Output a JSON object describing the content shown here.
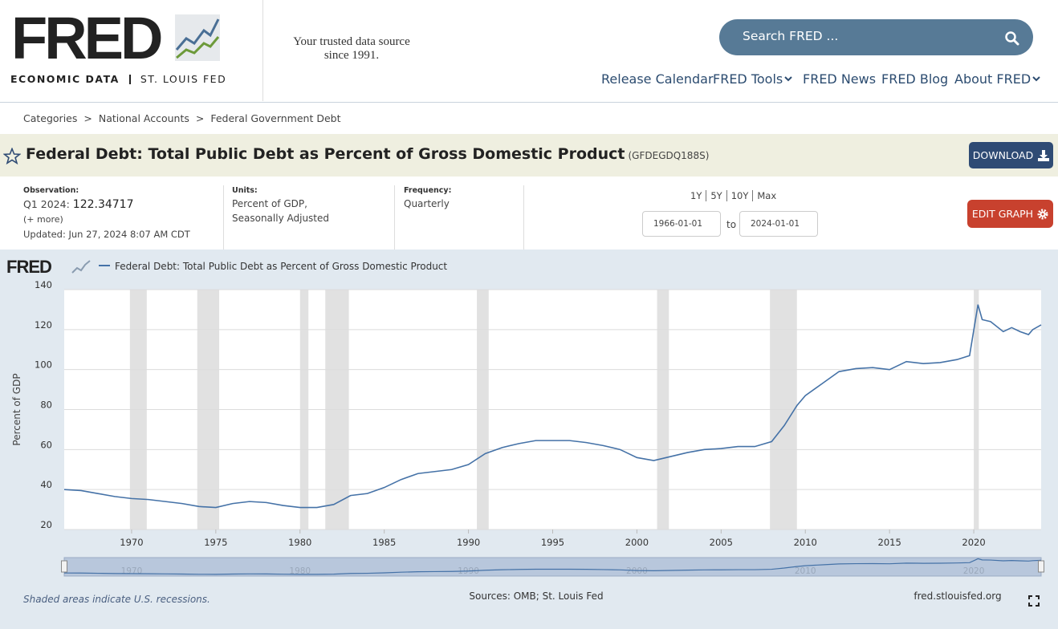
{
  "header": {
    "logo": "FRED",
    "logo_sub_left": "ECONOMIC DATA",
    "logo_sub_right": "ST. LOUIS FED",
    "tagline": "Your trusted data source since 1991.",
    "search_placeholder": "Search FRED ...",
    "nav": [
      "Release Calendar",
      "FRED Tools",
      "FRED News",
      "FRED Blog",
      "About FRED"
    ]
  },
  "breadcrumb": {
    "items": [
      "Categories",
      "National Accounts",
      "Federal Government Debt"
    ],
    "separator": ">"
  },
  "series_header": {
    "title": "Federal Debt: Total Public Debt as Percent of Gross Domestic Product",
    "code": "(GFDEGDQ188S)",
    "download": "DOWNLOAD"
  },
  "meta": {
    "observation_label": "Observation:",
    "observation_period": "Q1 2024:",
    "observation_value": "122.34717",
    "more": "(+ more)",
    "updated": "Updated: Jun 27, 2024 8:07 AM CDT",
    "units_label": "Units:",
    "units": [
      "Percent of GDP,",
      "Seasonally Adjusted"
    ],
    "frequency_label": "Frequency:",
    "frequency": "Quarterly",
    "ranges": [
      "1Y",
      "5Y",
      "10Y",
      "Max"
    ],
    "start_date": "1966-01-01",
    "to": "to",
    "end_date": "2024-01-01",
    "edit_graph": "EDIT GRAPH"
  },
  "chart_data": {
    "type": "line",
    "y_label": "Percent of GDP",
    "x": [
      1966,
      1967,
      1968,
      1969,
      1970,
      1971,
      1972,
      1973,
      1974,
      1975,
      1976,
      1977,
      1978,
      1979,
      1980,
      1981,
      1982,
      1983,
      1984,
      1985,
      1986,
      1987,
      1988,
      1989,
      1990,
      1991,
      1992,
      1993,
      1994,
      1995,
      1996,
      1997,
      1998,
      1999,
      2000,
      2001,
      2002,
      2003,
      2004,
      2005,
      2006,
      2007,
      2008,
      2008.75,
      2009.5,
      2010,
      2011,
      2012,
      2013,
      2014,
      2015,
      2016,
      2017,
      2018,
      2019,
      2019.75,
      2020.25,
      2020.5,
      2021,
      2021.75,
      2022.25,
      2022.75,
      2023.25,
      2023.5,
      2024
    ],
    "series": [
      {
        "name": "Federal Debt: Total Public Debt as Percent of Gross Domestic Product",
        "color": "#4572a7",
        "values": [
          40,
          39.5,
          38,
          36.5,
          35.5,
          35,
          34,
          33,
          31.5,
          31,
          33,
          34,
          33.5,
          32,
          31,
          31,
          32.5,
          37,
          38,
          41,
          45,
          48,
          49,
          50,
          52.5,
          58,
          61,
          63,
          64.5,
          64.5,
          64.5,
          63.5,
          62,
          60,
          56,
          54.5,
          56.5,
          58.5,
          60,
          60.5,
          61.5,
          61.5,
          64,
          72,
          82,
          87,
          93,
          99,
          100.5,
          101,
          100,
          104,
          103,
          103.5,
          105,
          107,
          132.5,
          125,
          124,
          119,
          121,
          119,
          117.5,
          120,
          122.34717
        ]
      }
    ],
    "xlim": [
      1966,
      2024
    ],
    "ylim": [
      20,
      140
    ],
    "xticks": [
      1970,
      1975,
      1980,
      1985,
      1990,
      1995,
      2000,
      2005,
      2010,
      2015,
      2020
    ],
    "yticks": [
      20,
      40,
      60,
      80,
      100,
      120,
      140
    ],
    "grid": true,
    "recessions": [
      [
        1969.9,
        1970.9
      ],
      [
        1973.9,
        1975.2
      ],
      [
        1980.0,
        1980.5
      ],
      [
        1981.5,
        1982.9
      ],
      [
        1990.5,
        1991.2
      ],
      [
        2001.2,
        2001.9
      ],
      [
        2007.9,
        2009.5
      ],
      [
        2020.0,
        2020.3
      ]
    ],
    "recession_color": "#e1e1e1",
    "navigator_xticks": [
      1970,
      1980,
      1990,
      2000,
      2010,
      2020
    ],
    "footnote": "Shaded areas indicate U.S. recessions.",
    "sources": "Sources: OMB; St. Louis Fed",
    "site": "fred.stlouisfed.org"
  }
}
